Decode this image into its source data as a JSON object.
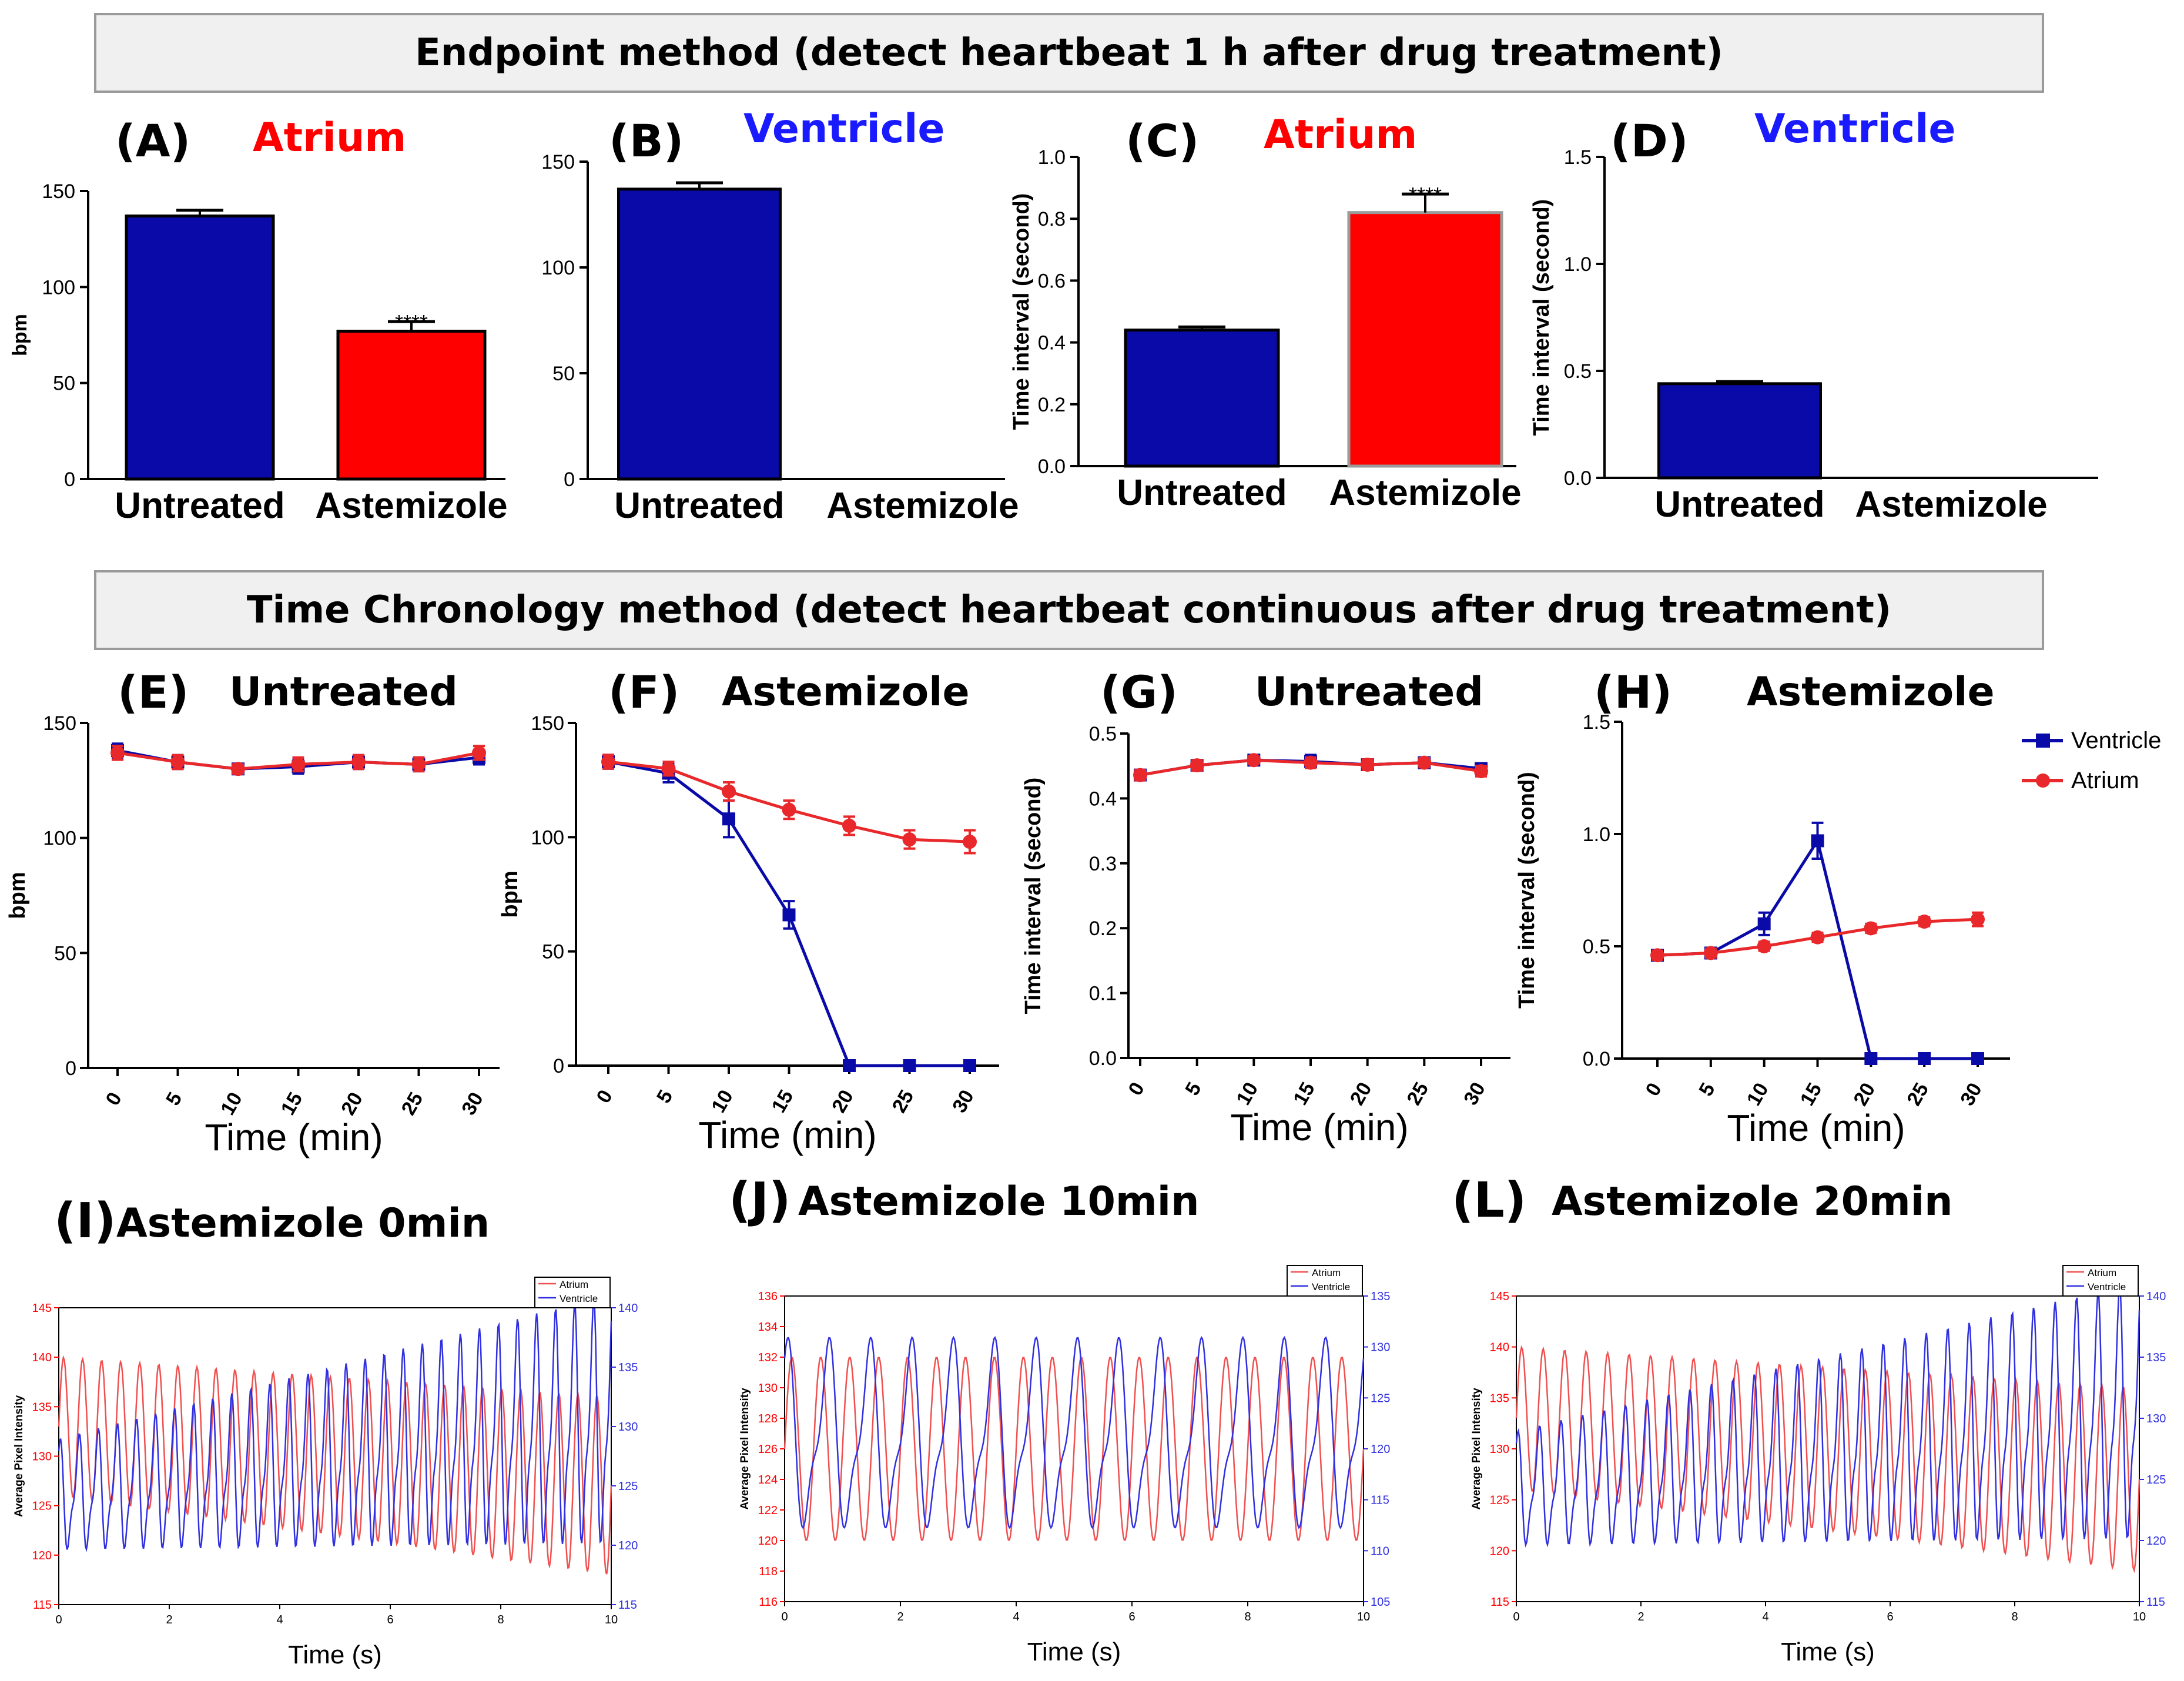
{
  "banners": {
    "top": "Endpoint method (detect heartbeat 1 h after drug treatment)",
    "middle": "Time Chronology method (detect heartbeat continuous after drug treatment)"
  },
  "colors": {
    "blue": "#0a0aa8",
    "red": "#ff0000",
    "red_line": "#e8282a",
    "trace_red": "#f05050",
    "trace_blue": "#3030e0"
  },
  "legend": {
    "ventricle": "Ventricle",
    "atrium": "Atrium"
  },
  "panels": {
    "A": {
      "label": "(A)",
      "title": "Atrium",
      "title_color": "#ff0000"
    },
    "B": {
      "label": "(B)",
      "title": "Ventricle",
      "title_color": "#1a1aff"
    },
    "C": {
      "label": "(C)",
      "title": "Atrium",
      "title_color": "#ff0000"
    },
    "D": {
      "label": "(D)",
      "title": "Ventricle",
      "title_color": "#1a1aff"
    },
    "E": {
      "label": "(E)",
      "title": "Untreated"
    },
    "F": {
      "label": "(F)",
      "title": "Astemizole"
    },
    "G": {
      "label": "(G)",
      "title": "Untreated"
    },
    "H": {
      "label": "(H)",
      "title": "Astemizole"
    },
    "I": {
      "label": "(I)",
      "title": "Astemizole 0min"
    },
    "J": {
      "label": "(J)",
      "title": "Astemizole 10min"
    },
    "L": {
      "label": "(L)",
      "title": "Astemizole 20min"
    }
  },
  "chart_data": [
    {
      "id": "A",
      "type": "bar",
      "categories": [
        "Untreated",
        "Astemizole"
      ],
      "values": [
        137,
        77
      ],
      "errors": [
        3,
        5
      ],
      "bar_colors": [
        "#0a0aa8",
        "#ff0000"
      ],
      "ylabel": "bpm",
      "ylim": [
        0,
        150
      ],
      "yticks": [
        "0",
        "50",
        "100",
        "150"
      ],
      "annotations": [
        "",
        "****"
      ]
    },
    {
      "id": "B",
      "type": "bar",
      "categories": [
        "Untreated",
        "Astemizole"
      ],
      "values": [
        137,
        0
      ],
      "errors": [
        3,
        0
      ],
      "bar_colors": [
        "#0a0aa8",
        "#ff0000"
      ],
      "ylabel": "",
      "ylim": [
        0,
        150
      ],
      "yticks": [
        "0",
        "50",
        "100",
        "150"
      ],
      "annotations": [
        "",
        ""
      ]
    },
    {
      "id": "C",
      "type": "bar",
      "categories": [
        "Untreated",
        "Astemizole"
      ],
      "values": [
        0.44,
        0.82
      ],
      "errors": [
        0.01,
        0.06
      ],
      "bar_colors": [
        "#0a0aa8",
        "#ff0000"
      ],
      "ylabel": "Time interval (second)",
      "ylim": [
        0,
        1.0
      ],
      "yticks": [
        "0.0",
        "0.2",
        "0.4",
        "0.6",
        "0.8",
        "1.0"
      ],
      "annotations": [
        "",
        "****"
      ]
    },
    {
      "id": "D",
      "type": "bar",
      "categories": [
        "Untreated",
        "Astemizole"
      ],
      "values": [
        0.44,
        0
      ],
      "errors": [
        0.01,
        0
      ],
      "bar_colors": [
        "#0a0aa8",
        "#ff0000"
      ],
      "ylabel": "Time interval (second)",
      "ylim": [
        0,
        1.5
      ],
      "yticks": [
        "0.0",
        "0.5",
        "1.0",
        "1.5"
      ],
      "annotations": [
        "",
        ""
      ]
    },
    {
      "id": "E",
      "type": "line",
      "x": [
        0,
        5,
        10,
        15,
        20,
        25,
        30
      ],
      "xticks": [
        "0",
        "5",
        "10",
        "15",
        "20",
        "25",
        "30"
      ],
      "xlabel": "Time (min)",
      "ylabel": "bpm",
      "ylim": [
        0,
        150
      ],
      "yticks": [
        "0",
        "50",
        "100",
        "150"
      ],
      "series": [
        {
          "name": "Ventricle",
          "values": [
            138,
            133,
            130,
            131,
            133,
            132,
            135
          ],
          "errors": [
            3,
            3,
            2,
            3,
            3,
            3,
            3
          ]
        },
        {
          "name": "Atrium",
          "values": [
            137,
            133,
            130,
            132,
            133,
            132,
            137
          ],
          "errors": [
            3,
            3,
            2,
            3,
            3,
            3,
            3
          ]
        }
      ]
    },
    {
      "id": "F",
      "type": "line",
      "x": [
        0,
        5,
        10,
        15,
        20,
        25,
        30
      ],
      "xticks": [
        "0",
        "5",
        "10",
        "15",
        "20",
        "25",
        "30"
      ],
      "xlabel": "Time (min)",
      "ylabel": "bpm",
      "ylim": [
        0,
        150
      ],
      "yticks": [
        "0",
        "50",
        "100",
        "150"
      ],
      "series": [
        {
          "name": "Ventricle",
          "values": [
            133,
            128,
            108,
            66,
            0,
            0,
            0
          ],
          "errors": [
            3,
            4,
            8,
            6,
            0,
            0,
            0
          ]
        },
        {
          "name": "Atrium",
          "values": [
            133,
            130,
            120,
            112,
            105,
            99,
            98
          ],
          "errors": [
            3,
            3,
            4,
            4,
            4,
            4,
            5
          ]
        }
      ]
    },
    {
      "id": "G",
      "type": "line",
      "x": [
        0,
        5,
        10,
        15,
        20,
        25,
        30
      ],
      "xticks": [
        "0",
        "5",
        "10",
        "15",
        "20",
        "25",
        "30"
      ],
      "xlabel": "Time (min)",
      "ylabel": "Time interval (second)",
      "ylim": [
        0,
        0.5
      ],
      "yticks": [
        "0.0",
        "0.1",
        "0.2",
        "0.3",
        "0.4",
        "0.5"
      ],
      "series": [
        {
          "name": "Ventricle",
          "values": [
            0.436,
            0.451,
            0.459,
            0.457,
            0.452,
            0.455,
            0.446
          ],
          "errors": [
            0.008,
            0.008,
            0.006,
            0.01,
            0.008,
            0.007,
            0.008
          ]
        },
        {
          "name": "Atrium",
          "values": [
            0.436,
            0.451,
            0.459,
            0.455,
            0.452,
            0.455,
            0.442
          ],
          "errors": [
            0.008,
            0.008,
            0.006,
            0.008,
            0.008,
            0.007,
            0.008
          ]
        }
      ]
    },
    {
      "id": "H",
      "type": "line",
      "x": [
        0,
        5,
        10,
        15,
        20,
        25,
        30
      ],
      "xticks": [
        "0",
        "5",
        "10",
        "15",
        "20",
        "25",
        "30"
      ],
      "xlabel": "Time (min)",
      "ylabel": "Time interval (second)",
      "ylim": [
        0,
        1.5
      ],
      "yticks": [
        "0.0",
        "0.5",
        "1.0",
        "1.5"
      ],
      "series": [
        {
          "name": "Ventricle",
          "values": [
            0.46,
            0.47,
            0.6,
            0.97,
            0,
            0,
            0
          ],
          "errors": [
            0.02,
            0.02,
            0.05,
            0.08,
            0,
            0,
            0
          ]
        },
        {
          "name": "Atrium",
          "values": [
            0.46,
            0.47,
            0.5,
            0.54,
            0.58,
            0.61,
            0.62
          ],
          "errors": [
            0.02,
            0.02,
            0.02,
            0.02,
            0.02,
            0.02,
            0.03
          ]
        }
      ]
    },
    {
      "id": "I",
      "type": "line",
      "xlabel": "Time (s)",
      "xlim": [
        0,
        10
      ],
      "xticks": [
        "0",
        "2",
        "4",
        "6",
        "8",
        "10"
      ],
      "ylabel": "Average Pixel Intensity",
      "ylim_left": [
        115,
        145
      ],
      "yticks_left": [
        "115",
        "120",
        "125",
        "130",
        "135",
        "140",
        "145"
      ],
      "ylim_right": [
        115,
        140
      ],
      "yticks_right": [
        "115",
        "120",
        "125",
        "130",
        "135",
        "140"
      ],
      "legend": [
        "Atrium",
        "Ventricle"
      ],
      "series": [
        {
          "name": "Atrium",
          "axis": "left",
          "freq_hz": 2.9,
          "center_start": 133,
          "center_end": 127,
          "amp_start": 7,
          "amp_end": 9
        },
        {
          "name": "Ventricle",
          "axis": "right",
          "freq_hz": 2.9,
          "center_start": 124,
          "center_end": 130,
          "amp_start": 4,
          "amp_end": 9
        }
      ]
    },
    {
      "id": "J",
      "type": "line",
      "xlabel": "Time (s)",
      "xlim": [
        0,
        10
      ],
      "xticks": [
        "0",
        "2",
        "4",
        "6",
        "8",
        "10"
      ],
      "ylabel": "Average Pixel Intensity",
      "ylim_left": [
        116,
        136
      ],
      "yticks_left": [
        "116",
        "118",
        "120",
        "122",
        "124",
        "126",
        "128",
        "130",
        "132",
        "134",
        "136"
      ],
      "ylim_right": [
        105,
        135
      ],
      "yticks_right": [
        "105",
        "110",
        "115",
        "120",
        "125",
        "130",
        "135"
      ],
      "legend": [
        "Atrium",
        "Ventricle"
      ],
      "series": [
        {
          "name": "Atrium",
          "axis": "left",
          "freq_hz": 2.0,
          "center_start": 126,
          "center_end": 126,
          "amp_start": 6,
          "amp_end": 6
        },
        {
          "name": "Ventricle",
          "axis": "right",
          "freq_hz": 1.4,
          "center_start": 121,
          "center_end": 121,
          "amp_start": 8,
          "amp_end": 8
        }
      ]
    },
    {
      "id": "L",
      "type": "line",
      "xlabel": "Time (s)",
      "xlim": [
        0,
        10
      ],
      "xticks": [
        "0",
        "2",
        "4",
        "6",
        "8",
        "10"
      ],
      "ylabel": "Average Pixel Intensity",
      "ylim_left": [
        115,
        145
      ],
      "yticks_left": [
        "115",
        "120",
        "125",
        "130",
        "135",
        "140",
        "145"
      ],
      "ylim_right": [
        115,
        140
      ],
      "yticks_right": [
        "115",
        "120",
        "125",
        "130",
        "135",
        "140"
      ],
      "legend": [
        "Atrium",
        "Ventricle"
      ],
      "series": [
        {
          "name": "Atrium",
          "axis": "left",
          "freq_hz": 2.9,
          "center_start": 133,
          "center_end": 127,
          "amp_start": 7,
          "amp_end": 9
        },
        {
          "name": "Ventricle",
          "axis": "right",
          "freq_hz": 2.9,
          "center_start": 124,
          "center_end": 130,
          "amp_start": 4,
          "amp_end": 9
        }
      ]
    }
  ]
}
